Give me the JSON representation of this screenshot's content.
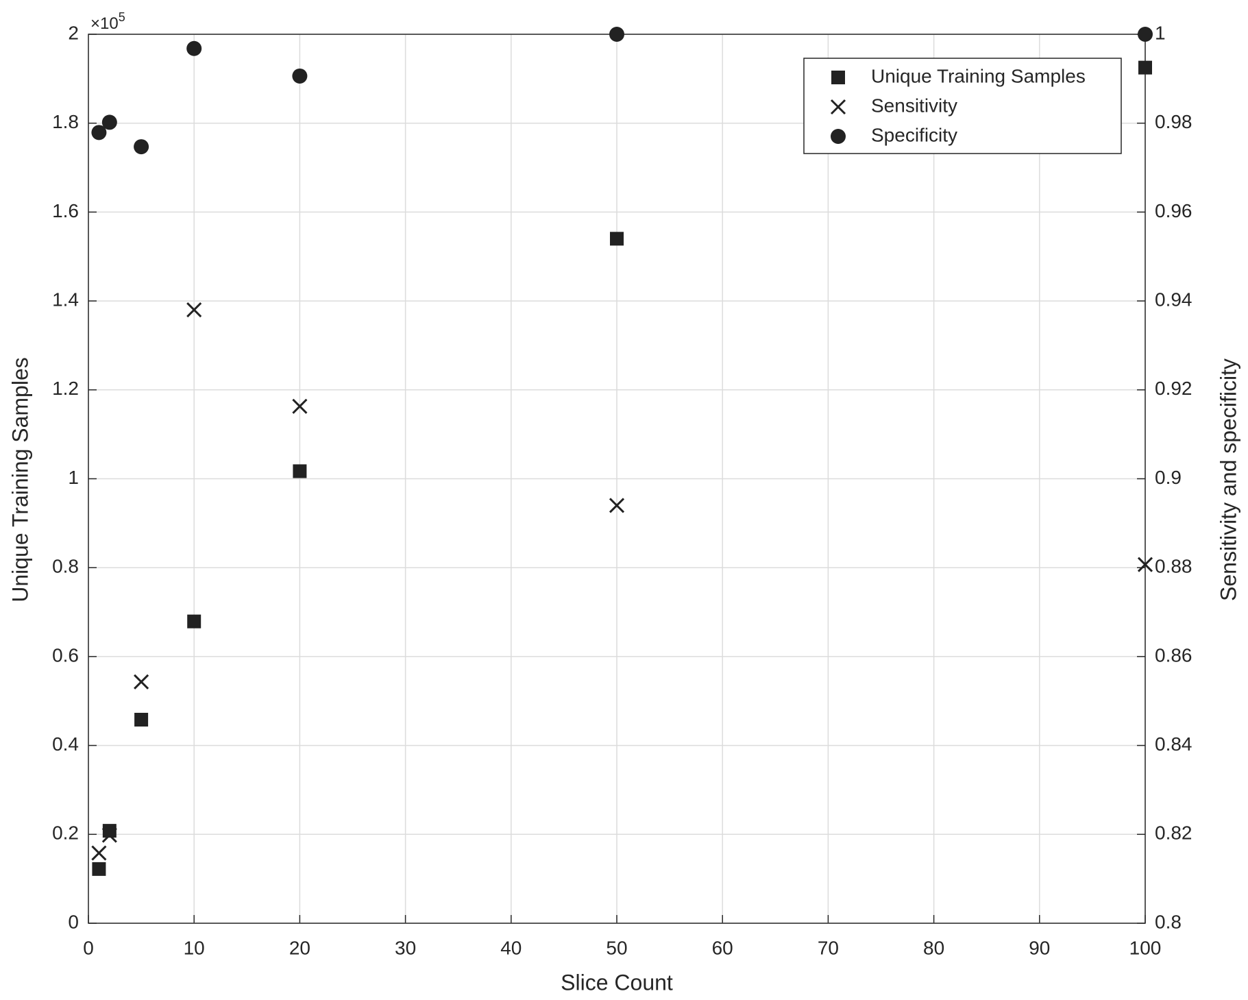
{
  "chart_data": {
    "type": "scatter",
    "x_label": "Slice Count",
    "y_label": "Unique Training Samples",
    "y2_label": "Sensitivity and specificity",
    "y_exponent": {
      "base": "×10",
      "power": "5"
    },
    "x": [
      1,
      2,
      5,
      10,
      20,
      50,
      100
    ],
    "series": [
      {
        "name": "Unique Training Samples",
        "color": "#222222",
        "marker": "square",
        "values": [
          0.122,
          0.208,
          0.458,
          0.679,
          1.017,
          1.54,
          1.925
        ]
      },
      {
        "name": "Sensitivity",
        "color": "#222222",
        "marker": "x",
        "axis": "y2",
        "values": [
          0.8158,
          0.8198,
          0.8543,
          0.938,
          0.9163,
          0.894,
          0.8807
        ]
      },
      {
        "name": "Specificity",
        "color": "#222222",
        "marker": "circle",
        "axis": "y2",
        "values": [
          0.9779,
          0.9802,
          0.9747,
          0.9968,
          0.9906,
          1.0,
          1.0
        ]
      }
    ],
    "xlim": [
      0,
      100
    ],
    "xticks": [
      0,
      10,
      20,
      30,
      40,
      50,
      60,
      70,
      80,
      90,
      100
    ],
    "ylim": [
      0,
      2
    ],
    "yticks": [
      0,
      0.2,
      0.4,
      0.6,
      0.8,
      1,
      1.2,
      1.4,
      1.6,
      1.8,
      2
    ],
    "y2lim": [
      0.8,
      1
    ],
    "y2ticks": [
      0.8,
      0.82,
      0.84,
      0.86,
      0.88,
      0.9,
      0.92,
      0.94,
      0.96,
      0.98,
      1
    ],
    "grid": true,
    "legend": "top-right"
  }
}
